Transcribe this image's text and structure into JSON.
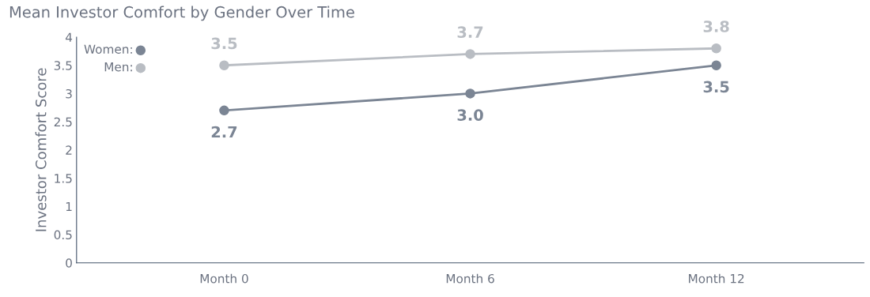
{
  "chart_data": {
    "type": "line",
    "title": "Mean Investor Comfort by Gender Over Time",
    "ylabel": "Investor Comfort Score",
    "categories": [
      "Month 0",
      "Month 6",
      "Month 12"
    ],
    "series": [
      {
        "name": "Women:",
        "color": "#7b8594",
        "values": [
          2.7,
          3.0,
          3.5
        ],
        "value_labels": [
          "2.7",
          "3.0",
          "3.5"
        ]
      },
      {
        "name": "Men:",
        "color": "#b9bdc3",
        "values": [
          3.5,
          3.7,
          3.8
        ],
        "value_labels": [
          "3.5",
          "3.7",
          "3.8"
        ]
      }
    ],
    "ylim": [
      0,
      4
    ],
    "yticks": [
      0,
      0.5,
      1,
      1.5,
      2,
      2.5,
      3,
      3.5,
      4
    ],
    "grid": false,
    "legend": "top left",
    "marker": "circle",
    "line_style": "solid"
  }
}
